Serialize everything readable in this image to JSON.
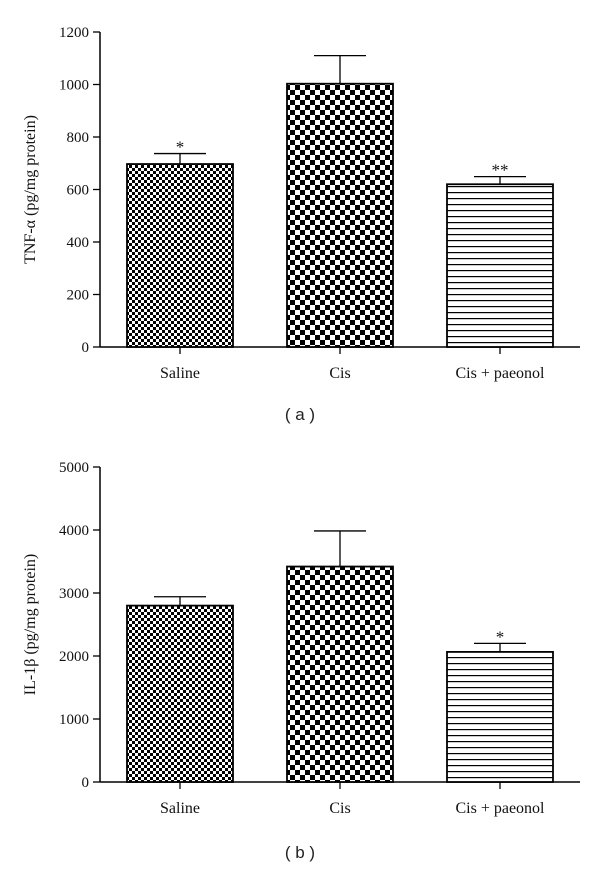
{
  "chart_data": [
    {
      "type": "bar",
      "panel_label": "( a )",
      "categories": [
        "Saline",
        "Cis",
        "Cis + paeonol"
      ],
      "values": [
        697,
        1003,
        620
      ],
      "error_upper": [
        737,
        1110,
        649
      ],
      "annotations": [
        "*",
        "",
        "**"
      ],
      "patterns": [
        "fine-checker",
        "coarse-checker",
        "horizontal-lines"
      ],
      "ylabel": "TNF-α (pg/mg protein)",
      "ylim": [
        0,
        1200
      ],
      "yticks": [
        0,
        200,
        400,
        600,
        800,
        1000,
        1200
      ],
      "xlabel": "",
      "legend": "none"
    },
    {
      "type": "bar",
      "panel_label": "( b )",
      "categories": [
        "Saline",
        "Cis",
        "Cis + paeonol"
      ],
      "values": [
        2800,
        3420,
        2065
      ],
      "error_upper": [
        2940,
        3985,
        2200
      ],
      "annotations": [
        "",
        "",
        "*"
      ],
      "patterns": [
        "fine-checker",
        "coarse-checker",
        "horizontal-lines"
      ],
      "ylabel": "IL-1β (pg/mg protein)",
      "ylim": [
        0,
        5000
      ],
      "yticks": [
        0,
        1000,
        2000,
        3000,
        4000,
        5000
      ],
      "xlabel": "",
      "legend": "none"
    }
  ]
}
